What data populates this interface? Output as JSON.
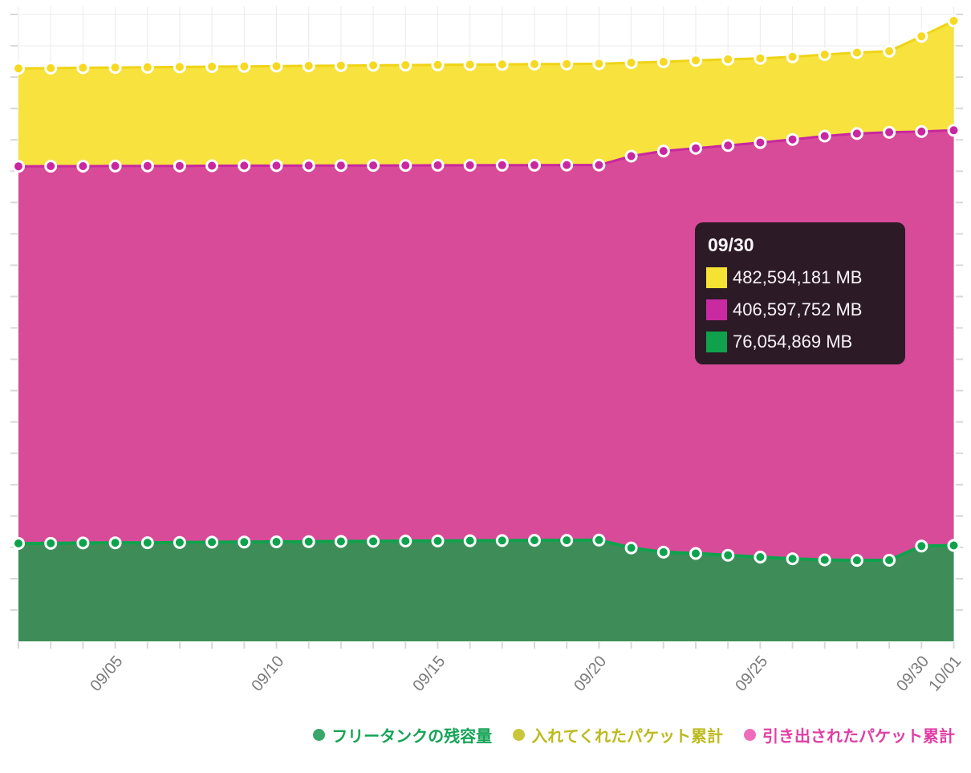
{
  "chart_data": {
    "type": "area",
    "stacked": false,
    "unit": "MB",
    "values_unit": "million MB",
    "x": [
      "09/02",
      "09/03",
      "09/04",
      "09/05",
      "09/06",
      "09/07",
      "09/08",
      "09/09",
      "09/10",
      "09/11",
      "09/12",
      "09/13",
      "09/14",
      "09/15",
      "09/16",
      "09/17",
      "09/18",
      "09/19",
      "09/20",
      "09/21",
      "09/22",
      "09/23",
      "09/24",
      "09/25",
      "09/26",
      "09/27",
      "09/28",
      "09/29",
      "09/30",
      "10/01"
    ],
    "x_tick_indices": [
      3,
      8,
      13,
      18,
      23,
      28,
      29
    ],
    "x_tick_labels": [
      "09/05",
      "09/10",
      "09/15",
      "09/20",
      "09/25",
      "09/30",
      "10/01"
    ],
    "ylim_million_mb": [
      0,
      506
    ],
    "y_gridline_step_million_mb": 25,
    "grid": true,
    "legend_position": "bottom",
    "series": [
      {
        "key": "given",
        "name": "入れてくれたパケット累計",
        "color_fill": "#f7e23e",
        "color_line": "#efd416",
        "color_marker": "#f6d920",
        "line_width": 3,
        "values_million_mb": [
          457.0,
          457.2,
          457.5,
          457.7,
          457.9,
          458.1,
          458.4,
          458.6,
          458.8,
          459.0,
          459.2,
          459.4,
          459.6,
          459.8,
          460.0,
          460.2,
          460.4,
          460.5,
          460.7,
          461.5,
          462.2,
          463.4,
          464.2,
          465.0,
          466.2,
          468.0,
          469.6,
          470.7,
          482.59,
          494.9
        ]
      },
      {
        "key": "withdrawn",
        "name": "引き出されたパケット累計",
        "color_fill": "#d84b98",
        "color_line": "#c927a0",
        "color_marker": "#c927a0",
        "line_width": 3,
        "values_million_mb": [
          378.9,
          379.0,
          379.0,
          379.1,
          379.2,
          379.2,
          379.3,
          379.4,
          379.4,
          379.5,
          379.5,
          379.6,
          379.6,
          379.7,
          379.7,
          379.8,
          379.8,
          379.9,
          379.9,
          387.0,
          391.1,
          393.3,
          395.5,
          397.8,
          400.3,
          403.0,
          405.0,
          406.0,
          406.6,
          407.6
        ]
      },
      {
        "key": "remaining",
        "name": "フリータンクの残容量",
        "color_fill": "#3e8d58",
        "color_line": "#0fa24d",
        "color_marker": "#0fa24d",
        "line_width": 4,
        "values_million_mb": [
          78.1,
          78.2,
          78.5,
          78.6,
          78.7,
          78.9,
          79.1,
          79.2,
          79.4,
          79.5,
          79.7,
          79.8,
          80.0,
          80.1,
          80.3,
          80.4,
          80.6,
          80.6,
          80.8,
          74.5,
          71.1,
          70.1,
          68.7,
          67.2,
          65.9,
          65.0,
          64.6,
          64.7,
          76.05,
          76.5
        ]
      }
    ]
  },
  "tooltip": {
    "title": "09/30",
    "background": "#2c1a26",
    "rows": [
      {
        "series_key": "given",
        "swatch_color": "#f5e233",
        "value": "482,594,181 MB"
      },
      {
        "series_key": "withdrawn",
        "swatch_color": "#c92aa2",
        "value": "406,597,752 MB"
      },
      {
        "series_key": "remaining",
        "swatch_color": "#0fa14c",
        "value": "76,054,869 MB"
      }
    ]
  },
  "legend": {
    "items": [
      {
        "label": "フリータンクの残容量",
        "dot_color": "#3aa76a",
        "text_color": "#15a356",
        "series_key": "remaining"
      },
      {
        "label": "入れてくれたパケット累計",
        "dot_color": "#c9c63b",
        "text_color": "#bcba1d",
        "series_key": "given"
      },
      {
        "label": "引き出されたパケット累計",
        "dot_color": "#ee6cbb",
        "text_color": "#e03fa4",
        "series_key": "withdrawn"
      }
    ]
  },
  "axis_style": {
    "grid_color": "#ebebeb",
    "tick_color": "#d8d8d8",
    "label_color": "#7a7a7a"
  }
}
